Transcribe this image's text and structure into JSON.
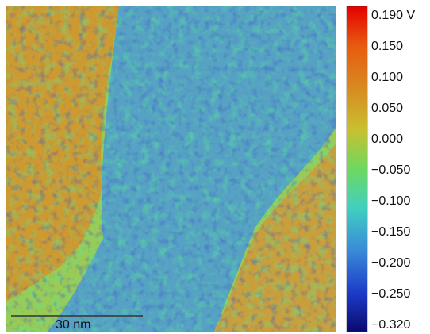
{
  "colorbar": {
    "labels": [
      "0.190 V",
      "0.150",
      "0.100",
      "0.050",
      "0.000",
      "−0.050",
      "−0.100",
      "−0.150",
      "−0.200",
      "−0.250",
      "−0.320"
    ]
  },
  "scale_bar": {
    "label": "30 nm"
  }
}
